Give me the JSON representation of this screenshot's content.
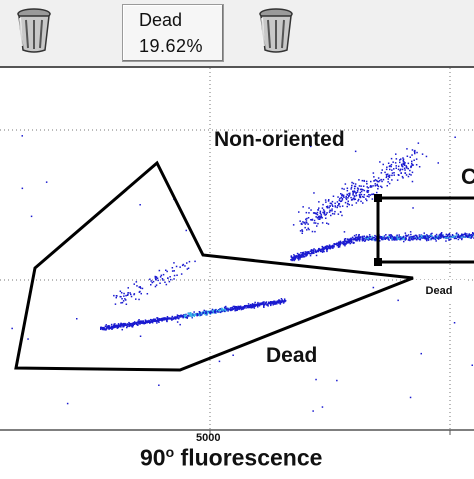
{
  "toolbar": {
    "left_icon": "trash-can-icon",
    "right_icon": "trash-can-icon",
    "stat_name": "Dead",
    "stat_percent": "19.62%"
  },
  "plot": {
    "gate_labels": {
      "non_oriented": "Non-oriented",
      "dead": "Dead",
      "cut_letter": "C",
      "dead_tag": "Dead"
    },
    "x_tick": "5000",
    "xlabel_base": "90",
    "xlabel_sup": "o",
    "xlabel_rest": " fluorescence",
    "event_color": "#1a1ad0",
    "dense_color": "#38b8e8"
  }
}
